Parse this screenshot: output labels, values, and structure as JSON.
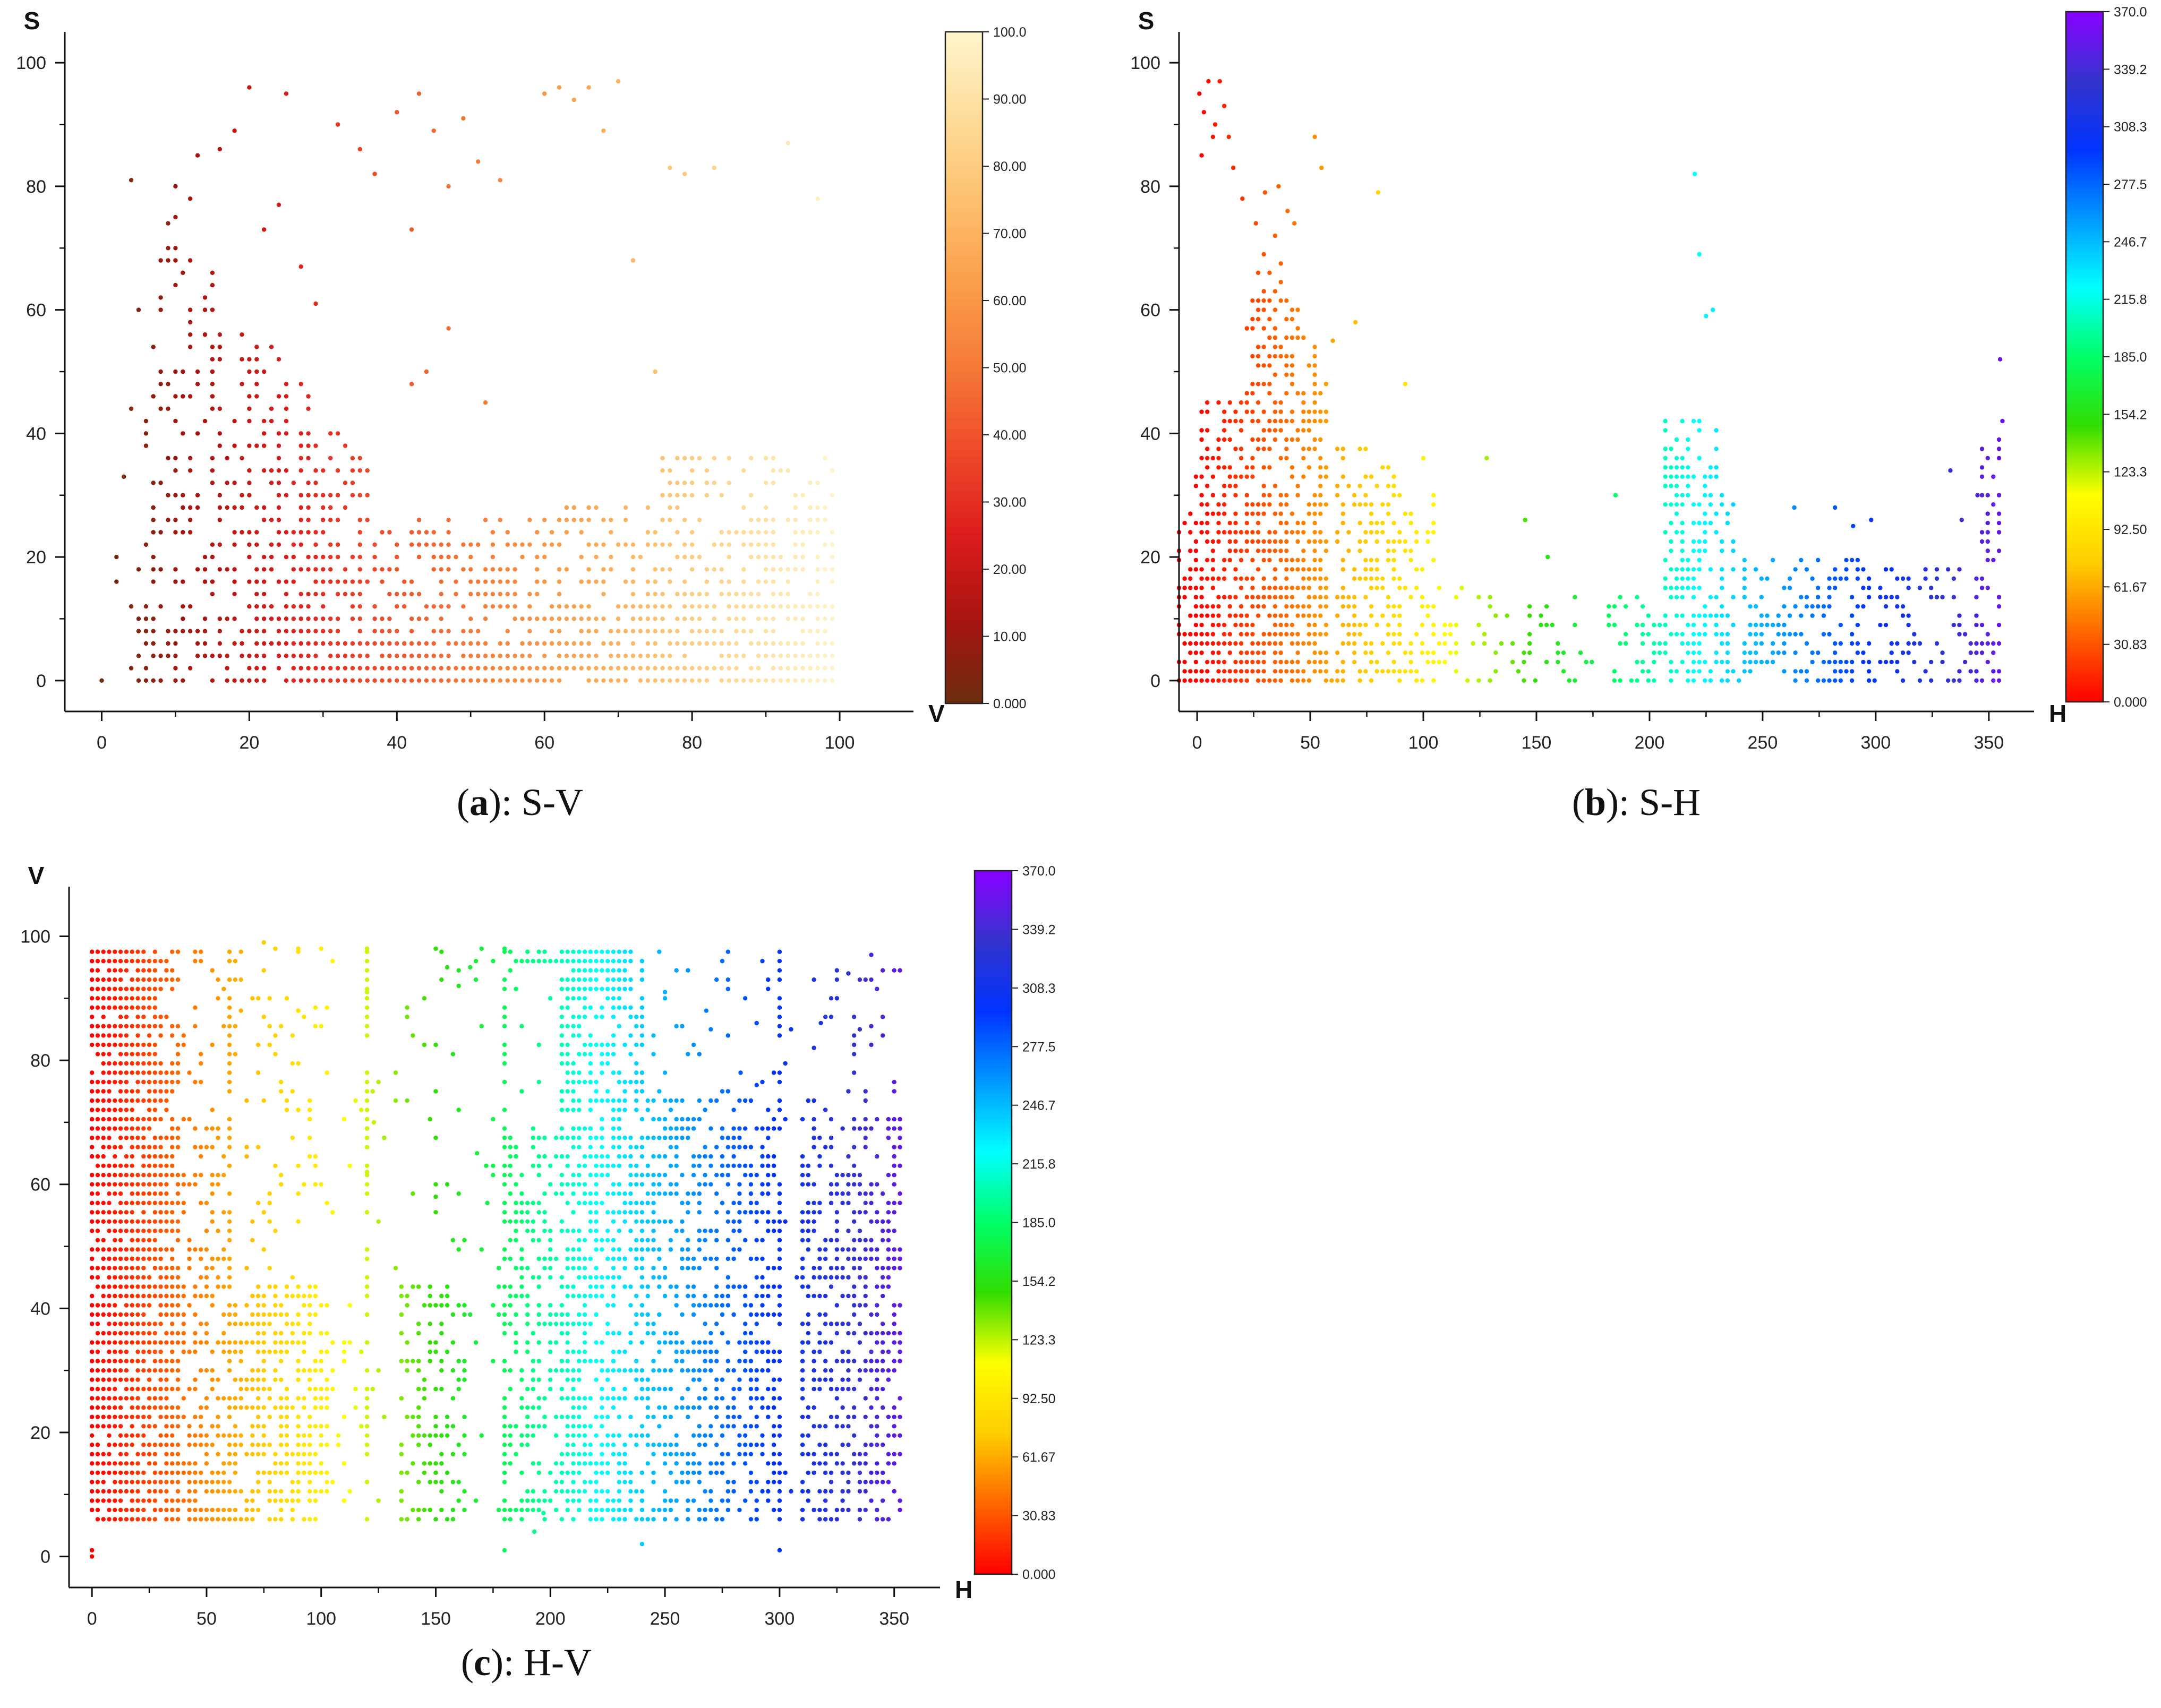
{
  "chart_data": [
    {
      "id": "a",
      "type": "scatter",
      "caption_letter": "a",
      "caption_text": ": S-V",
      "xlabel": "V",
      "ylabel": "S",
      "xlim": [
        -5,
        110
      ],
      "ylim": [
        -5,
        105
      ],
      "x_ticks": [
        "0",
        "20",
        "40",
        "60",
        "80",
        "100"
      ],
      "y_ticks": [
        "0",
        "20",
        "40",
        "60",
        "80",
        "100"
      ],
      "color_by": "x",
      "colorbar": {
        "min": 0,
        "max": 100,
        "labels": [
          "100.0",
          "90.00",
          "80.00",
          "70.00",
          "60.00",
          "50.00",
          "40.00",
          "30.00",
          "20.00",
          "10.00",
          "0.000"
        ],
        "colors": [
          "#6b2d0e",
          "#a8140f",
          "#dc1c1c",
          "#ee4a2a",
          "#f57a38",
          "#fa9e4a",
          "#fdc06f",
          "#fedd9a",
          "#fff5cc"
        ]
      },
      "points": [
        [
          0,
          0
        ],
        [
          2,
          16
        ],
        [
          2,
          20
        ],
        [
          3,
          33
        ],
        [
          4,
          44
        ],
        [
          4,
          81
        ],
        [
          5,
          60
        ],
        [
          6,
          40
        ],
        [
          7,
          54
        ],
        [
          8,
          62
        ],
        [
          9,
          70
        ],
        [
          10,
          75
        ],
        [
          10,
          80
        ],
        [
          11,
          66
        ],
        [
          12,
          78
        ],
        [
          13,
          85
        ],
        [
          14,
          56
        ],
        [
          15,
          64
        ],
        [
          16,
          86
        ],
        [
          18,
          89
        ],
        [
          20,
          96
        ],
        [
          22,
          73
        ],
        [
          24,
          77
        ],
        [
          25,
          95
        ],
        [
          27,
          67
        ],
        [
          29,
          61
        ],
        [
          32,
          90
        ],
        [
          35,
          86
        ],
        [
          37,
          82
        ],
        [
          40,
          92
        ],
        [
          42,
          73
        ],
        [
          43,
          95
        ],
        [
          45,
          89
        ],
        [
          47,
          80
        ],
        [
          49,
          91
        ],
        [
          51,
          84
        ],
        [
          54,
          81
        ],
        [
          60,
          95
        ],
        [
          62,
          96
        ],
        [
          64,
          94
        ],
        [
          66,
          96
        ],
        [
          68,
          89
        ],
        [
          70,
          97
        ],
        [
          72,
          68
        ],
        [
          75,
          50
        ],
        [
          77,
          83
        ],
        [
          79,
          82
        ],
        [
          83,
          83
        ],
        [
          93,
          87
        ],
        [
          97,
          78
        ],
        [
          44,
          50
        ],
        [
          47,
          57
        ],
        [
          42,
          48
        ],
        [
          52,
          45
        ]
      ]
    },
    {
      "id": "b",
      "type": "scatter",
      "caption_letter": "b",
      "caption_text": ": S-H",
      "xlabel": "H",
      "ylabel": "S",
      "xlim": [
        -8,
        370
      ],
      "ylim": [
        -5,
        105
      ],
      "x_ticks": [
        "0",
        "50",
        "100",
        "150",
        "200",
        "250",
        "300",
        "350"
      ],
      "y_ticks": [
        "0",
        "20",
        "40",
        "60",
        "80",
        "100"
      ],
      "color_by": "x",
      "colorbar": {
        "min": 0,
        "max": 370,
        "labels": [
          "370.0",
          "339.2",
          "308.3",
          "277.5",
          "246.7",
          "215.8",
          "185.0",
          "154.2",
          "123.3",
          "92.50",
          "61.67",
          "30.83",
          "0.000"
        ],
        "colors": [
          "#ff0000",
          "#ff6600",
          "#ffcc00",
          "#ffff00",
          "#33dd00",
          "#00ff66",
          "#00ffff",
          "#0099ff",
          "#0033ff",
          "#3333cc",
          "#8800ff"
        ]
      },
      "points": [
        [
          1,
          95
        ],
        [
          2,
          85
        ],
        [
          3,
          92
        ],
        [
          5,
          97
        ],
        [
          7,
          88
        ],
        [
          8,
          90
        ],
        [
          10,
          97
        ],
        [
          12,
          93
        ],
        [
          14,
          88
        ],
        [
          16,
          83
        ],
        [
          20,
          78
        ],
        [
          26,
          74
        ],
        [
          30,
          79
        ],
        [
          36,
          80
        ],
        [
          40,
          76
        ],
        [
          43,
          74
        ],
        [
          52,
          88
        ],
        [
          55,
          83
        ],
        [
          60,
          55
        ],
        [
          70,
          58
        ],
        [
          80,
          79
        ],
        [
          92,
          48
        ],
        [
          100,
          36
        ],
        [
          128,
          36
        ],
        [
          145,
          26
        ],
        [
          155,
          20
        ],
        [
          185,
          30
        ],
        [
          220,
          82
        ],
        [
          222,
          69
        ],
        [
          225,
          59
        ],
        [
          228,
          60
        ],
        [
          355,
          52
        ],
        [
          356,
          42
        ],
        [
          264,
          28
        ],
        [
          282,
          28
        ],
        [
          290,
          25
        ],
        [
          298,
          26
        ],
        [
          333,
          34
        ],
        [
          338,
          26
        ],
        [
          345,
          30
        ]
      ]
    },
    {
      "id": "c",
      "type": "scatter",
      "caption_letter": "c",
      "caption_text": ": H-V",
      "xlabel": "H",
      "ylabel": "V",
      "xlim": [
        -10,
        370
      ],
      "ylim": [
        -5,
        108
      ],
      "x_ticks": [
        "0",
        "50",
        "100",
        "150",
        "200",
        "250",
        "300",
        "350"
      ],
      "y_ticks": [
        "0",
        "20",
        "40",
        "60",
        "80",
        "100"
      ],
      "color_by": "x",
      "colorbar": {
        "min": 0,
        "max": 370,
        "labels": [
          "370.0",
          "339.2",
          "308.3",
          "277.5",
          "246.7",
          "215.8",
          "185.0",
          "154.2",
          "123.3",
          "92.50",
          "61.67",
          "30.83",
          "0.000"
        ],
        "colors": [
          "#ff0000",
          "#ff6600",
          "#ffcc00",
          "#ffff00",
          "#33dd00",
          "#00ff66",
          "#00ffff",
          "#0099ff",
          "#0033ff",
          "#3333cc",
          "#8800ff"
        ]
      },
      "points": [
        [
          0,
          0
        ],
        [
          0,
          1
        ],
        [
          75,
          99
        ],
        [
          80,
          98
        ],
        [
          90,
          98
        ],
        [
          100,
          98
        ],
        [
          120,
          98
        ],
        [
          120,
          91
        ],
        [
          150,
          98
        ],
        [
          155,
          95
        ],
        [
          160,
          92
        ],
        [
          165,
          95
        ],
        [
          170,
          98
        ],
        [
          180,
          98
        ],
        [
          180,
          1
        ],
        [
          65,
          88
        ],
        [
          90,
          88
        ],
        [
          240,
          2
        ],
        [
          300,
          1
        ],
        [
          283,
          78
        ],
        [
          290,
          76
        ],
        [
          330,
          94
        ],
        [
          340,
          97
        ],
        [
          325,
          90
        ],
        [
          335,
          85
        ],
        [
          120,
          62
        ],
        [
          120,
          69
        ],
        [
          123,
          70
        ],
        [
          150,
          58
        ],
        [
          155,
          60
        ],
        [
          172,
          63
        ],
        [
          168,
          65
        ],
        [
          180,
          54
        ],
        [
          180,
          69
        ],
        [
          193,
          4
        ],
        [
          197,
          7
        ],
        [
          250,
          91
        ],
        [
          268,
          88
        ],
        [
          270,
          85
        ],
        [
          285,
          90
        ],
        [
          290,
          86
        ],
        [
          305,
          85
        ],
        [
          315,
          82
        ],
        [
          318,
          86
        ],
        [
          320,
          87
        ]
      ]
    }
  ]
}
